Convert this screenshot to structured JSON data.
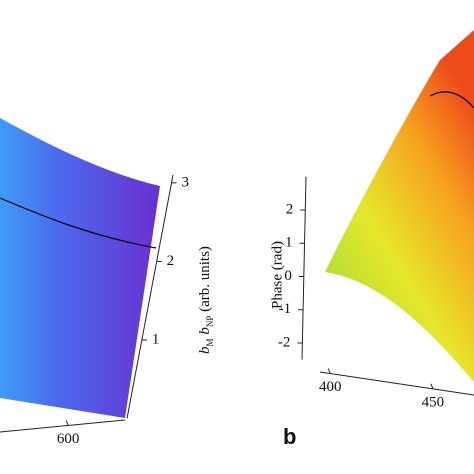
{
  "chart_data": [
    {
      "type": "surface3d",
      "zlabel_parts": [
        "b",
        "M",
        " b",
        "NP",
        " (arb. units)"
      ],
      "zlim": [
        0,
        3.1
      ],
      "zticks": [
        1,
        2,
        3
      ],
      "xlim": [
        540,
        650
      ],
      "xticks": [
        600
      ]
    },
    {
      "type": "surface3d",
      "panel_label": "b",
      "zlabel": "Phase (rad)",
      "zlim": [
        -2.5,
        3
      ],
      "zticks": [
        -2,
        -1,
        0,
        1,
        2
      ],
      "xlim": [
        395,
        470
      ],
      "xticks": [
        400,
        450
      ]
    }
  ]
}
